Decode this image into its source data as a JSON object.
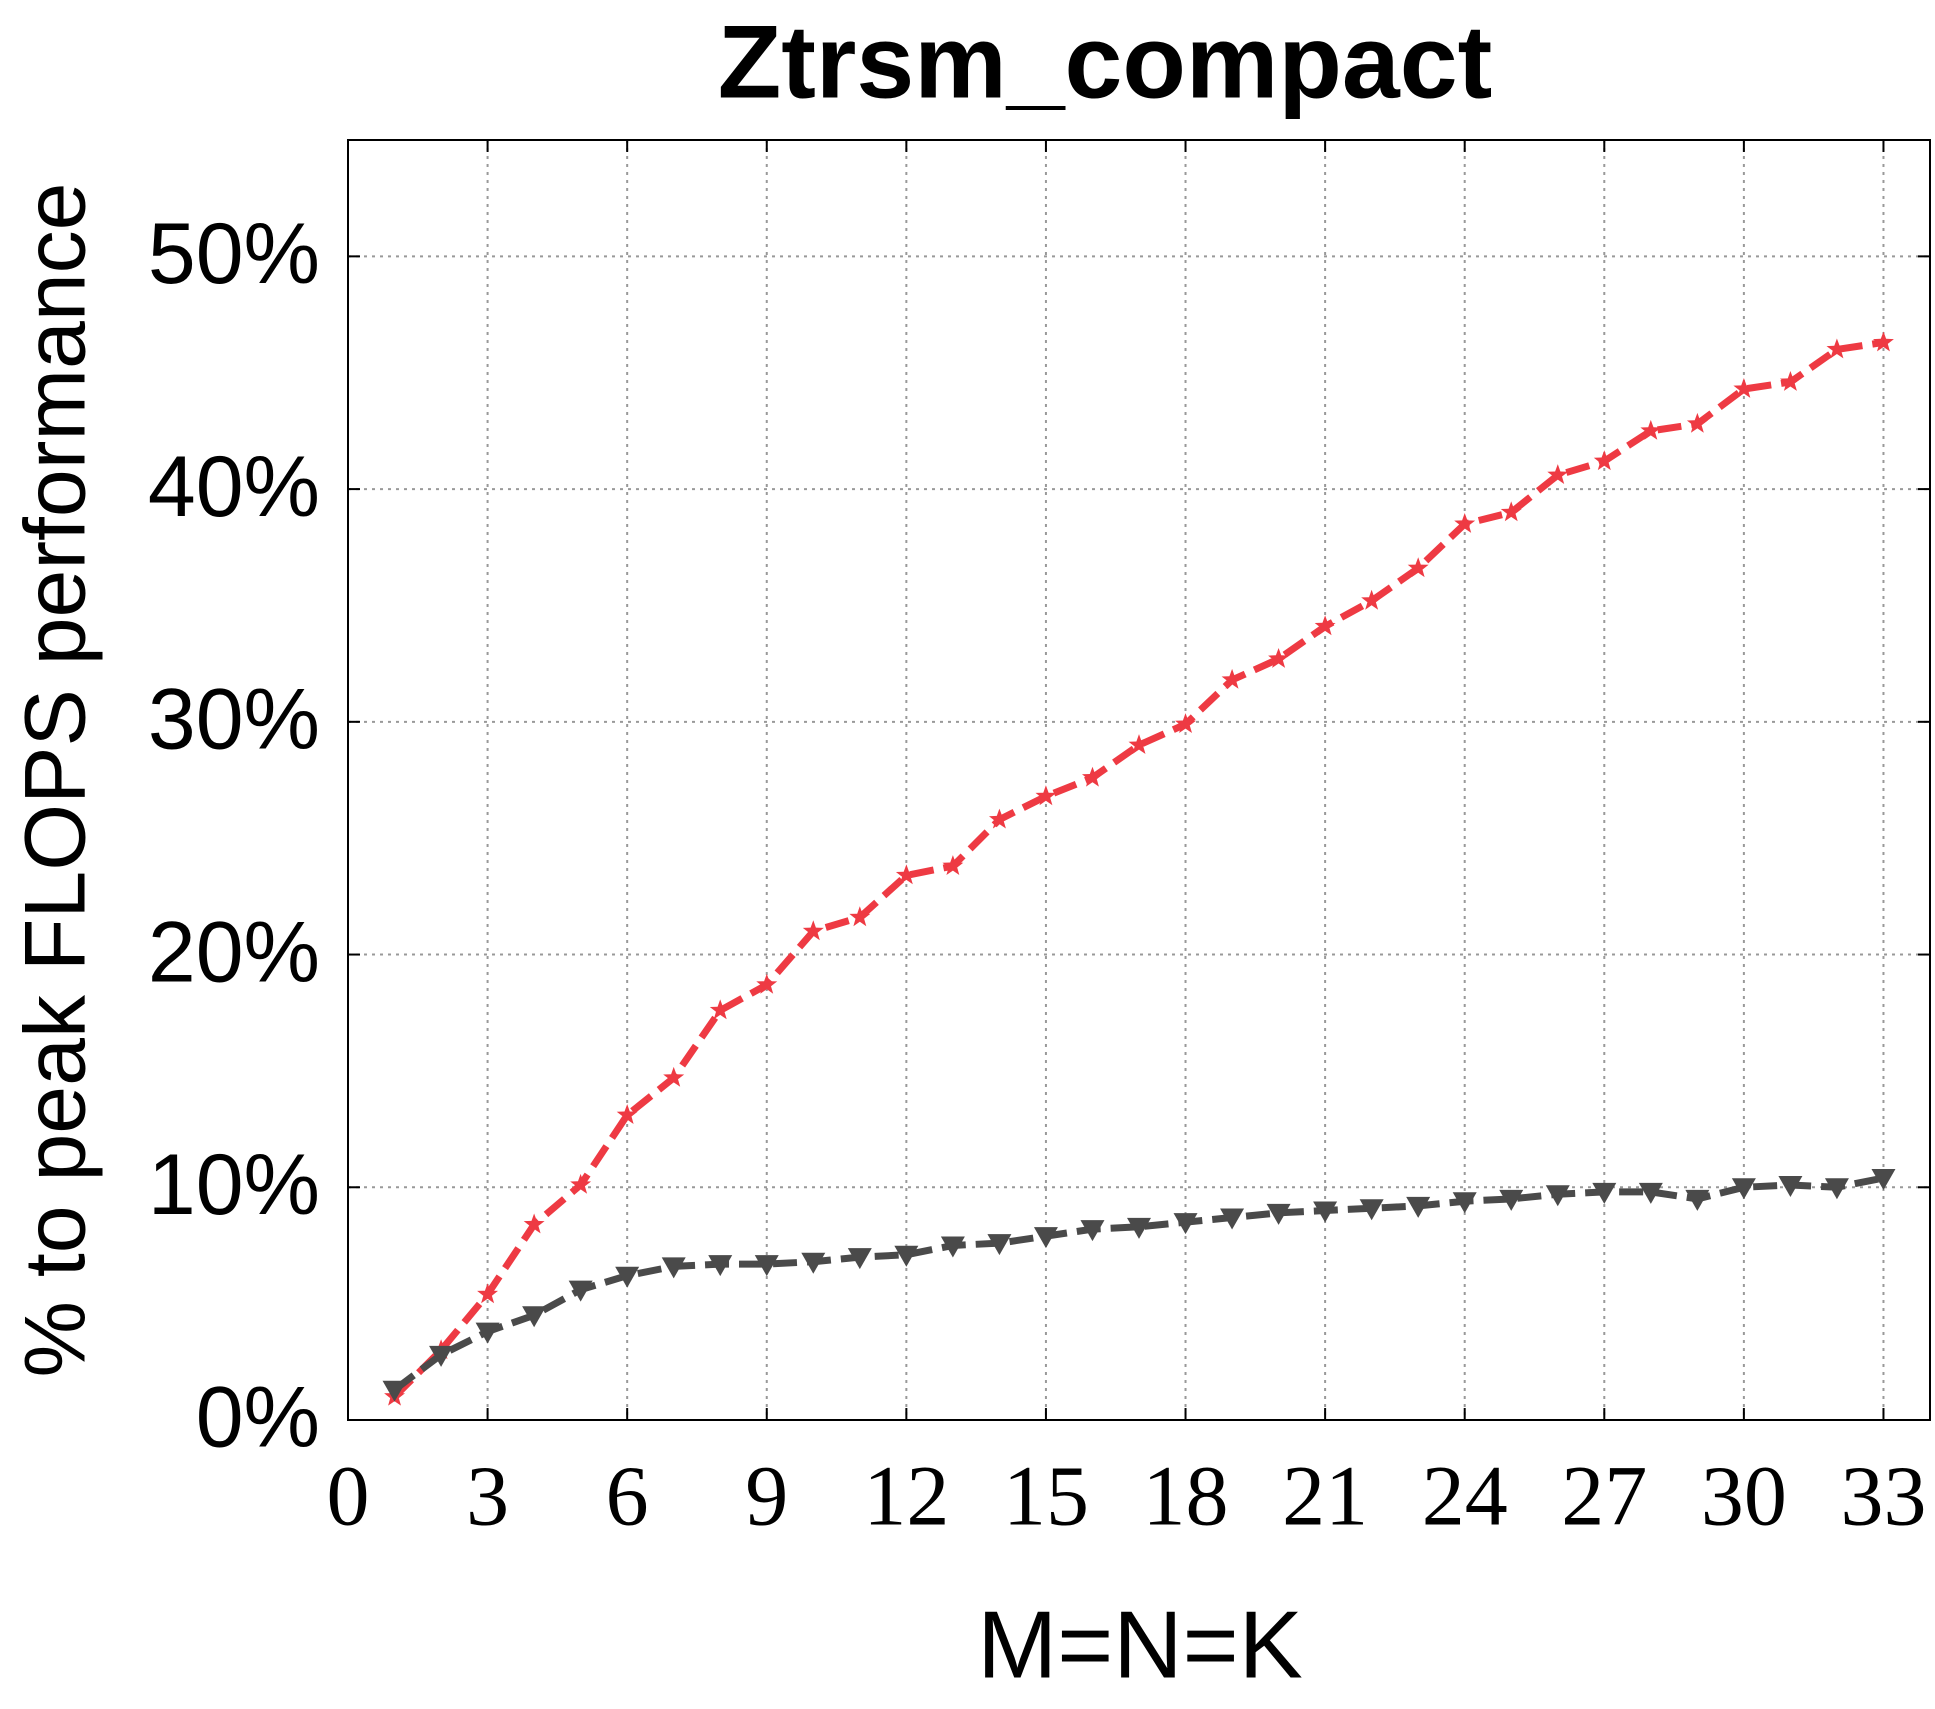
{
  "chart_data": {
    "type": "line",
    "title": "Ztrsm_compact",
    "xlabel": "M=N=K",
    "ylabel": "% to peak FLOPS performance",
    "x": [
      1,
      2,
      3,
      4,
      5,
      6,
      7,
      8,
      9,
      10,
      11,
      12,
      13,
      14,
      15,
      16,
      17,
      18,
      19,
      20,
      21,
      22,
      23,
      24,
      25,
      26,
      27,
      28,
      29,
      30,
      31,
      32,
      33
    ],
    "series": [
      {
        "color": "#ee3a43",
        "marker": "star",
        "linestyle": "dashed",
        "values": [
          1.0,
          3.0,
          5.4,
          8.4,
          10.1,
          13.1,
          14.7,
          17.6,
          18.7,
          21.0,
          21.6,
          23.4,
          23.8,
          25.8,
          26.8,
          27.6,
          29.0,
          29.9,
          31.8,
          32.7,
          34.1,
          35.2,
          36.6,
          38.5,
          39.0,
          40.6,
          41.2,
          42.5,
          42.8,
          44.3,
          44.6,
          46.0,
          46.3
        ]
      },
      {
        "color": "#4a4a4a",
        "marker": "triangle-down",
        "linestyle": "dashed",
        "values": [
          1.3,
          2.8,
          3.8,
          4.5,
          5.6,
          6.2,
          6.6,
          6.7,
          6.7,
          6.8,
          7.0,
          7.1,
          7.5,
          7.6,
          7.9,
          8.2,
          8.3,
          8.5,
          8.7,
          8.9,
          9.0,
          9.1,
          9.2,
          9.4,
          9.5,
          9.7,
          9.8,
          9.8,
          9.5,
          10.0,
          10.1,
          10.0,
          10.4
        ]
      }
    ],
    "xlim": [
      0,
      34
    ],
    "xticks": [
      0,
      3,
      6,
      9,
      12,
      15,
      18,
      21,
      24,
      27,
      30,
      33
    ],
    "ylim": [
      0,
      55
    ],
    "yticks": [
      {
        "value": 0,
        "label": "0%"
      },
      {
        "value": 10,
        "label": "10%"
      },
      {
        "value": 20,
        "label": "20%"
      },
      {
        "value": 30,
        "label": "30%"
      },
      {
        "value": 40,
        "label": "40%"
      },
      {
        "value": 50,
        "label": "50%"
      }
    ],
    "grid": true
  }
}
